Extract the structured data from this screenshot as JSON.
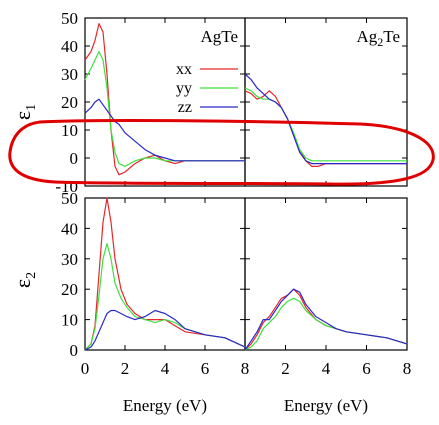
{
  "colors": {
    "xx": "#e8262a",
    "yy": "#3fe03f",
    "zz": "#2a2aca",
    "annotation": "#e00000"
  },
  "chart_data": {
    "type": "line",
    "x_tick_labels_panel1": [
      "0",
      "2",
      "4",
      "6",
      "8"
    ],
    "x_tick_labels_panel2": [
      "2",
      "4",
      "6",
      "8"
    ],
    "xlim": [
      0,
      8
    ],
    "xlabel_left": "Energy (eV)",
    "xlabel_right": "Energy (eV)",
    "panels": [
      {
        "row": "eps1",
        "col": "AgTe",
        "title": "AgTe",
        "ylabel": "ε",
        "ylabel_sub": "1",
        "ylim": [
          -10,
          50
        ],
        "yticks": [
          "-10",
          "0",
          "10",
          "20",
          "30",
          "40",
          "50"
        ],
        "legend": [
          "xx",
          "yy",
          "zz"
        ],
        "series": [
          {
            "name": "xx",
            "color": "#e8262a",
            "x": [
              0,
              0.3,
              0.5,
              0.7,
              0.9,
              1.1,
              1.3,
              1.5,
              1.7,
              2.0,
              2.5,
              3.0,
              3.5,
              4.0,
              4.5,
              5,
              6,
              7,
              8
            ],
            "y": [
              35,
              38,
              42,
              48,
              45,
              30,
              10,
              -3,
              -6,
              -5,
              -2,
              0,
              1,
              -1,
              -2,
              -1,
              -1,
              -1,
              -1
            ]
          },
          {
            "name": "yy",
            "color": "#3fe03f",
            "x": [
              0,
              0.3,
              0.5,
              0.7,
              0.9,
              1.1,
              1.3,
              1.5,
              1.7,
              2.0,
              2.5,
              3.0,
              3.5,
              4.0,
              4.5,
              5,
              6,
              7,
              8
            ],
            "y": [
              28,
              32,
              35,
              38,
              35,
              25,
              10,
              2,
              -2,
              -3,
              -1,
              0,
              0,
              -1,
              -1,
              -1,
              -1,
              -1,
              -1
            ]
          },
          {
            "name": "zz",
            "color": "#2a2aca",
            "x": [
              0,
              0.3,
              0.5,
              0.7,
              0.9,
              1.1,
              1.3,
              1.5,
              1.7,
              2.0,
              2.5,
              3.0,
              3.5,
              4.0,
              4.5,
              5,
              6,
              7,
              8
            ],
            "y": [
              16,
              18,
              20,
              21,
              19,
              17,
              15,
              13,
              12,
              9,
              6,
              3,
              1,
              0,
              -1,
              -1,
              -1,
              -1,
              -1
            ]
          }
        ]
      },
      {
        "row": "eps1",
        "col": "Ag2Te",
        "title": "Ag",
        "title_sub": "2",
        "title_rest": "Te",
        "ylim": [
          -10,
          50
        ],
        "series": [
          {
            "name": "xx",
            "color": "#e8262a",
            "x": [
              0,
              0.3,
              0.6,
              0.9,
              1.2,
              1.5,
              1.8,
              2.1,
              2.4,
              2.7,
              3.0,
              3.3,
              3.6,
              4.0,
              4.5,
              5,
              6,
              7,
              8
            ],
            "y": [
              24,
              23,
              21,
              22,
              24,
              22,
              18,
              14,
              8,
              3,
              -1,
              -3,
              -3,
              -2,
              -2,
              -2,
              -2,
              -2,
              -2
            ]
          },
          {
            "name": "yy",
            "color": "#3fe03f",
            "x": [
              0,
              0.3,
              0.6,
              0.9,
              1.2,
              1.5,
              1.8,
              2.1,
              2.4,
              2.7,
              3.0,
              3.3,
              3.6,
              4.0,
              4.5,
              5,
              6,
              7,
              8
            ],
            "y": [
              25,
              24,
              22,
              21,
              21,
              20,
              18,
              14,
              9,
              3,
              0,
              -1,
              -1,
              -1,
              -1,
              -1,
              -1,
              -1,
              -1
            ]
          },
          {
            "name": "zz",
            "color": "#2a2aca",
            "x": [
              0,
              0.3,
              0.6,
              0.9,
              1.2,
              1.5,
              1.8,
              2.1,
              2.4,
              2.7,
              3.0,
              3.3,
              3.6,
              4.0,
              4.5,
              5,
              6,
              7,
              8
            ],
            "y": [
              30,
              28,
              25,
              23,
              21,
              20,
              18,
              14,
              8,
              2,
              -1,
              -2,
              -2,
              -2,
              -2,
              -2,
              -2,
              -2,
              -2
            ]
          }
        ]
      },
      {
        "row": "eps2",
        "col": "AgTe",
        "ylabel": "ε",
        "ylabel_sub": "2",
        "ylim": [
          0,
          50
        ],
        "yticks": [
          "0",
          "10",
          "20",
          "30",
          "40",
          "50"
        ],
        "series": [
          {
            "name": "xx",
            "color": "#e8262a",
            "x": [
              0,
              0.3,
              0.5,
              0.7,
              0.9,
              1.1,
              1.3,
              1.5,
              1.8,
              2.1,
              2.5,
              3.0,
              3.5,
              4.0,
              4.5,
              5,
              6,
              7,
              8
            ],
            "y": [
              0,
              2,
              8,
              25,
              42,
              50,
              42,
              30,
              20,
              15,
              12,
              10,
              10,
              10,
              8,
              6,
              5,
              4,
              1
            ]
          },
          {
            "name": "yy",
            "color": "#3fe03f",
            "x": [
              0,
              0.3,
              0.5,
              0.7,
              0.9,
              1.1,
              1.3,
              1.5,
              1.8,
              2.1,
              2.5,
              3.0,
              3.5,
              4.0,
              4.5,
              5,
              6,
              7,
              8
            ],
            "y": [
              0,
              2,
              7,
              18,
              30,
              35,
              30,
              22,
              17,
              14,
              11,
              10,
              9,
              10,
              9,
              7,
              5,
              4,
              1
            ]
          },
          {
            "name": "zz",
            "color": "#2a2aca",
            "x": [
              0,
              0.3,
              0.5,
              0.7,
              0.9,
              1.1,
              1.3,
              1.5,
              1.8,
              2.1,
              2.5,
              3.0,
              3.5,
              4.0,
              4.5,
              5,
              6,
              7,
              8
            ],
            "y": [
              0,
              1,
              3,
              6,
              9,
              12,
              13,
              13,
              12,
              11,
              10,
              11,
              13,
              12,
              10,
              7,
              5,
              4,
              1
            ]
          }
        ]
      },
      {
        "row": "eps2",
        "col": "Ag2Te",
        "ylim": [
          0,
          50
        ],
        "series": [
          {
            "name": "xx",
            "color": "#e8262a",
            "x": [
              0,
              0.3,
              0.6,
              0.9,
              1.2,
              1.5,
              1.8,
              2.1,
              2.4,
              2.7,
              3.0,
              3.5,
              4.0,
              4.5,
              5,
              6,
              7,
              8
            ],
            "y": [
              0,
              2,
              5,
              9,
              11,
              14,
              17,
              18,
              20,
              18,
              14,
              10,
              8,
              7,
              6,
              5,
              4,
              2
            ]
          },
          {
            "name": "yy",
            "color": "#3fe03f",
            "x": [
              0,
              0.3,
              0.6,
              0.9,
              1.2,
              1.5,
              1.8,
              2.1,
              2.4,
              2.7,
              3.0,
              3.5,
              4.0,
              4.5,
              5,
              6,
              7,
              8
            ],
            "y": [
              0,
              1,
              3,
              7,
              9,
              11,
              14,
              16,
              17,
              16,
              13,
              10,
              8,
              7,
              6,
              5,
              4,
              2
            ]
          },
          {
            "name": "zz",
            "color": "#2a2aca",
            "x": [
              0,
              0.3,
              0.6,
              0.9,
              1.2,
              1.5,
              1.8,
              2.1,
              2.4,
              2.7,
              3.0,
              3.5,
              4.0,
              4.5,
              5,
              6,
              7,
              8
            ],
            "y": [
              0,
              3,
              6,
              10,
              10,
              13,
              16,
              18,
              20,
              19,
              15,
              11,
              9,
              7,
              6,
              5,
              4,
              2
            ]
          }
        ]
      }
    ]
  }
}
